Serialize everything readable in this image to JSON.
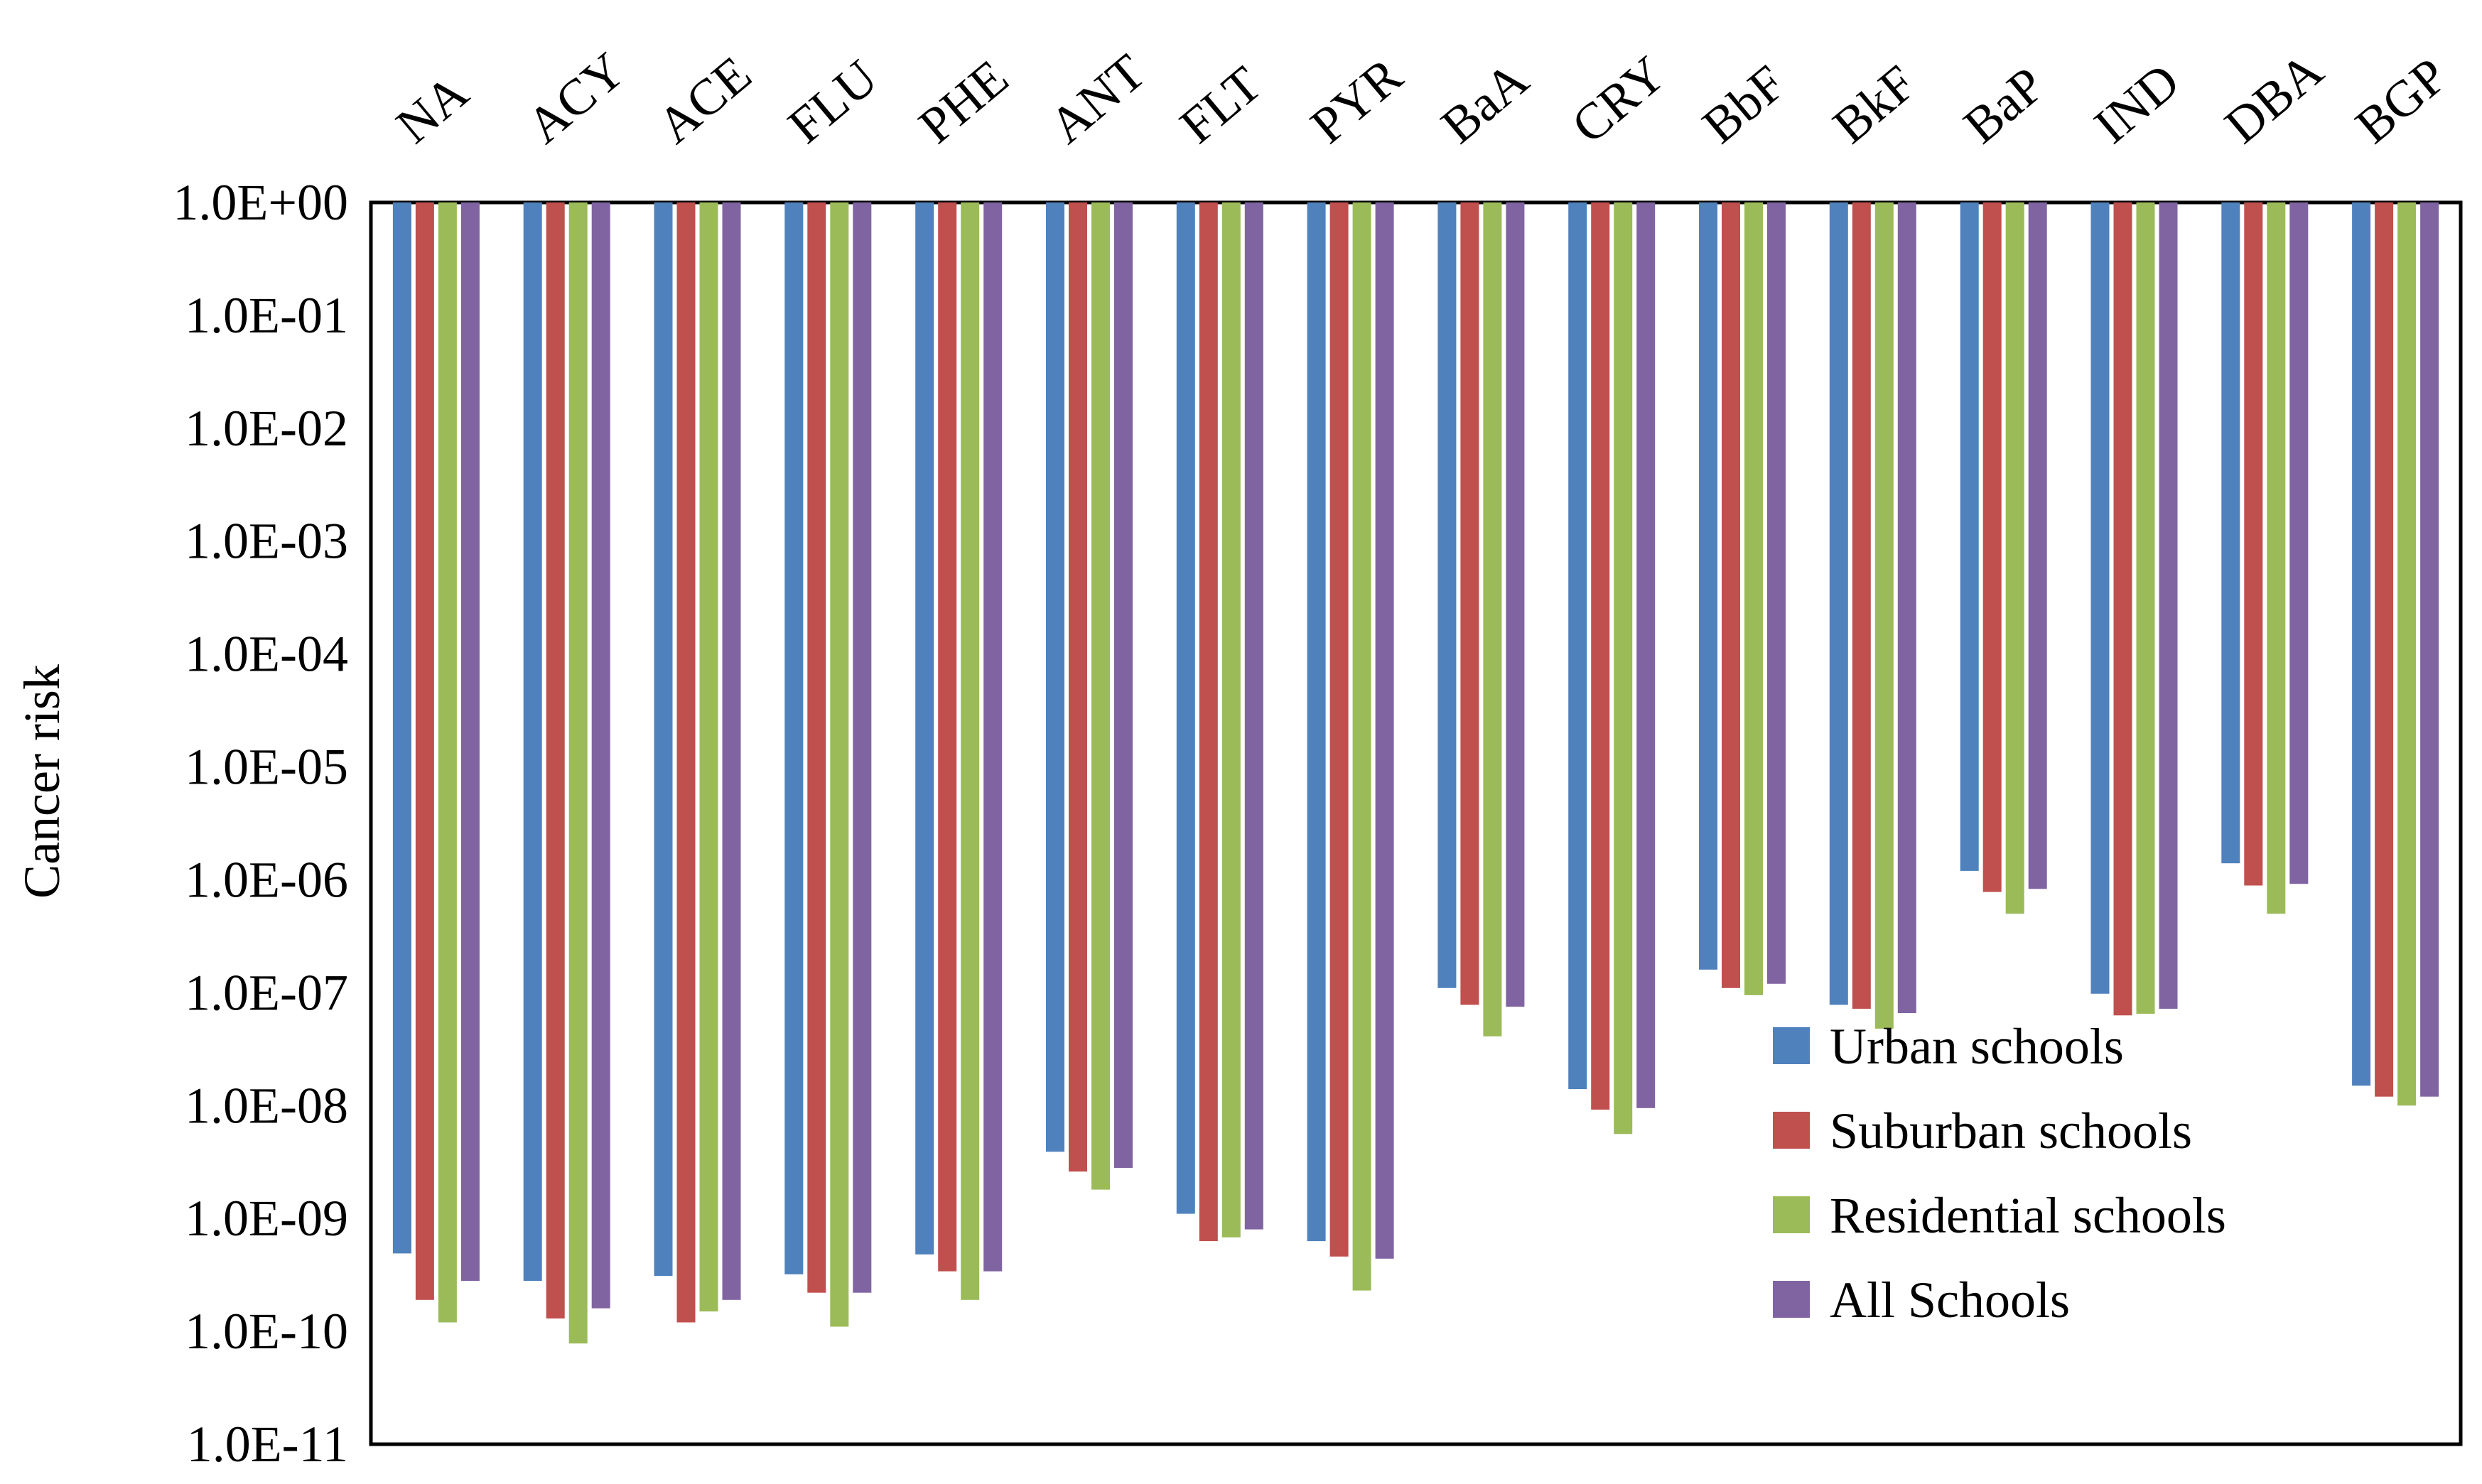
{
  "chart_data": {
    "type": "bar",
    "title": "",
    "xlabel": "",
    "ylabel": "Cancer risk",
    "y_scale": "log",
    "ylim": [
      1e-11,
      1
    ],
    "y_tick_labels": [
      "1.0E+00",
      "1.0E-01",
      "1.0E-02",
      "1.0E-03",
      "1.0E-04",
      "1.0E-05",
      "1.0E-06",
      "1.0E-07",
      "1.0E-08",
      "1.0E-09",
      "1.0E-10",
      "1.0E-11"
    ],
    "y_tick_exponents": [
      0,
      -1,
      -2,
      -3,
      -4,
      -5,
      -6,
      -7,
      -8,
      -9,
      -10,
      -11
    ],
    "categories": [
      "NA",
      "ACY",
      "ACE",
      "FLU",
      "PHE",
      "ANT",
      "FLT",
      "PYR",
      "BaA",
      "CRY",
      "BbF",
      "BkF",
      "BaP",
      "IND",
      "DBA",
      "BGP"
    ],
    "series": [
      {
        "name": "Urban schools",
        "color": "#4F81BD",
        "values": [
          4.9e-10,
          2.8e-10,
          3.1e-10,
          3.2e-10,
          4.8e-10,
          3.9e-09,
          1.1e-09,
          6.3e-10,
          1.1e-07,
          1.4e-08,
          1.6e-07,
          7.8e-08,
          1.2e-06,
          9.8e-08,
          1.4e-06,
          1.5e-08
        ]
      },
      {
        "name": "Suburban schools",
        "color": "#C0504D",
        "values": [
          1.9e-10,
          1.3e-10,
          1.2e-10,
          2.2e-10,
          3.4e-10,
          2.6e-09,
          6.3e-10,
          4.6e-10,
          7.8e-08,
          9.2e-09,
          1.1e-07,
          7.2e-08,
          7.8e-07,
          6.3e-08,
          8.9e-07,
          1.2e-08
        ]
      },
      {
        "name": "Residential schools",
        "color": "#9BBB59",
        "values": [
          1.2e-10,
          7.8e-11,
          1.5e-10,
          1.1e-10,
          1.9e-10,
          1.8e-09,
          6.8e-10,
          2.3e-10,
          4.1e-08,
          5.6e-09,
          9.5e-08,
          4.8e-08,
          5e-07,
          6.5e-08,
          5e-07,
          1e-08
        ]
      },
      {
        "name": "All Schools",
        "color": "#8064A2",
        "values": [
          2.8e-10,
          1.6e-10,
          1.9e-10,
          2.2e-10,
          3.4e-10,
          2.8e-09,
          8e-10,
          4.4e-10,
          7.5e-08,
          9.5e-09,
          1.2e-07,
          6.6e-08,
          8.3e-07,
          7.2e-08,
          9.2e-07,
          1.2e-08
        ]
      }
    ],
    "legend_position": "bottom-right",
    "grid": false
  }
}
